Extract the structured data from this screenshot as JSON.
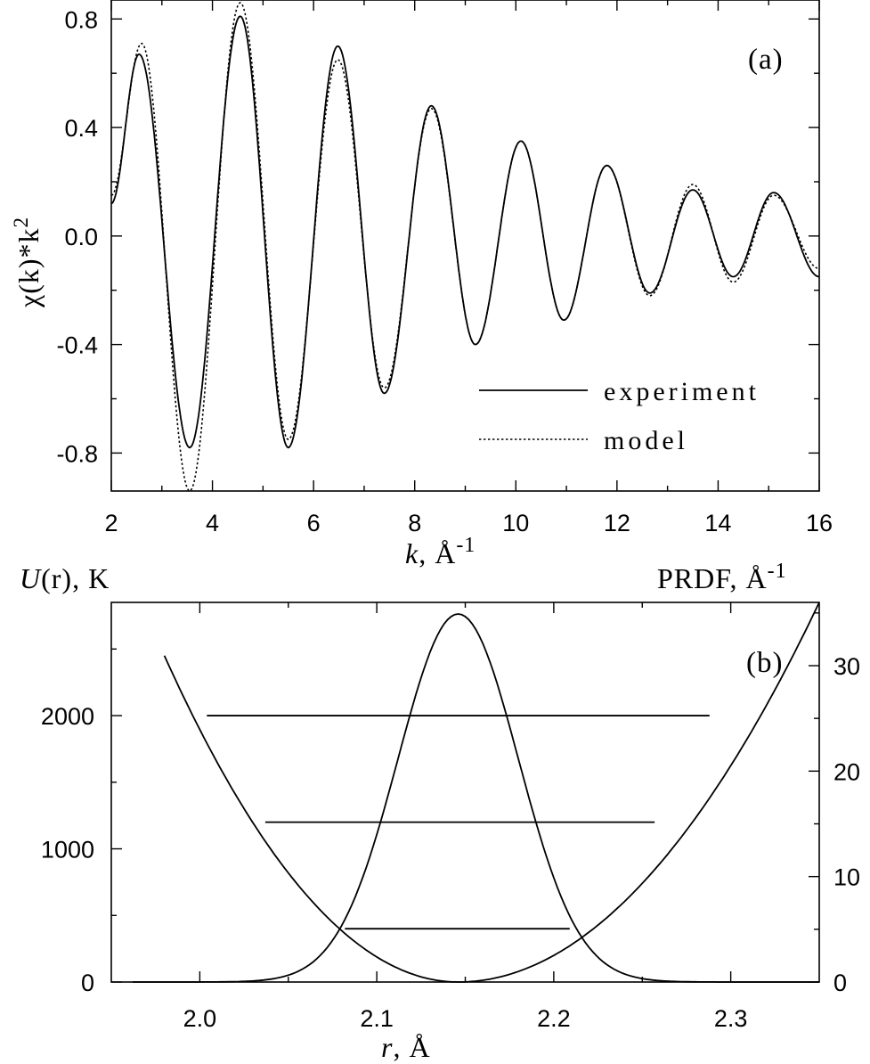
{
  "chart_data": [
    {
      "type": "line",
      "panel_label": "(a)",
      "xlabel_var": "k",
      "xlabel_unit": ", Å",
      "xlabel_exp": "-1",
      "ylabel_text": "χ(k)*k",
      "ylabel_exp": "2",
      "xlim": [
        2,
        16
      ],
      "ylim": [
        -0.94,
        0.87
      ],
      "xticks": [
        2,
        4,
        6,
        8,
        10,
        12,
        14,
        16
      ],
      "yticks": [
        -0.8,
        -0.4,
        0.0,
        0.4,
        0.8
      ],
      "ytick_labels": [
        "-0.8",
        "-0.4",
        "0.0",
        "0.4",
        "0.8"
      ],
      "legend_position": "lower-right",
      "series": [
        {
          "name": "experiment",
          "style": "solid",
          "peaks": [
            [
              2.0,
              0.12
            ],
            [
              2.55,
              0.67
            ],
            [
              3.55,
              -0.78
            ],
            [
              4.55,
              0.81
            ],
            [
              5.5,
              -0.78
            ],
            [
              6.48,
              0.7
            ],
            [
              7.4,
              -0.58
            ],
            [
              8.33,
              0.48
            ],
            [
              9.2,
              -0.4
            ],
            [
              10.1,
              0.35
            ],
            [
              10.95,
              -0.31
            ],
            [
              11.8,
              0.26
            ],
            [
              12.65,
              -0.21
            ],
            [
              13.5,
              0.17
            ],
            [
              14.3,
              -0.15
            ],
            [
              15.1,
              0.16
            ],
            [
              16.0,
              -0.15
            ]
          ]
        },
        {
          "name": "model",
          "style": "dotted",
          "peaks": [
            [
              2.0,
              0.15
            ],
            [
              2.6,
              0.71
            ],
            [
              3.55,
              -0.94
            ],
            [
              4.55,
              0.86
            ],
            [
              5.5,
              -0.75
            ],
            [
              6.48,
              0.65
            ],
            [
              7.4,
              -0.56
            ],
            [
              8.33,
              0.47
            ],
            [
              9.2,
              -0.4
            ],
            [
              10.1,
              0.35
            ],
            [
              10.95,
              -0.31
            ],
            [
              11.8,
              0.26
            ],
            [
              12.65,
              -0.22
            ],
            [
              13.5,
              0.19
            ],
            [
              14.3,
              -0.17
            ],
            [
              15.1,
              0.15
            ],
            [
              16.0,
              -0.12
            ]
          ]
        }
      ]
    },
    {
      "type": "line",
      "panel_label": "(b)",
      "xlabel_var": "r",
      "xlabel_unit": ", Å",
      "y_left_label_var": "U",
      "y_left_label_rest": "(r), K",
      "y_right_label": "PRDF, Å",
      "y_right_label_exp": "-1",
      "xlim": [
        1.95,
        2.35
      ],
      "xticks": [
        2.0,
        2.1,
        2.2,
        2.3
      ],
      "xtick_labels": [
        "2.0",
        "2.1",
        "2.2",
        "2.3"
      ],
      "y_left_lim": [
        0,
        2850
      ],
      "y_left_ticks": [
        0,
        1000,
        2000
      ],
      "y_right_lim": [
        0,
        36
      ],
      "y_right_ticks": [
        0,
        10,
        20,
        30
      ],
      "potential": {
        "r_min": 2.146,
        "u_at_1_98": 2450,
        "u_at_2_35": 2850
      },
      "prdf": {
        "center": 2.146,
        "peak": 34.9,
        "sigma": 0.034
      },
      "energy_levels": [
        {
          "u": 400,
          "r_start": 2.082,
          "r_end": 2.209
        },
        {
          "u": 1200,
          "r_start": 2.037,
          "r_end": 2.257
        },
        {
          "u": 2000,
          "r_start": 2.004,
          "r_end": 2.288
        }
      ]
    }
  ]
}
